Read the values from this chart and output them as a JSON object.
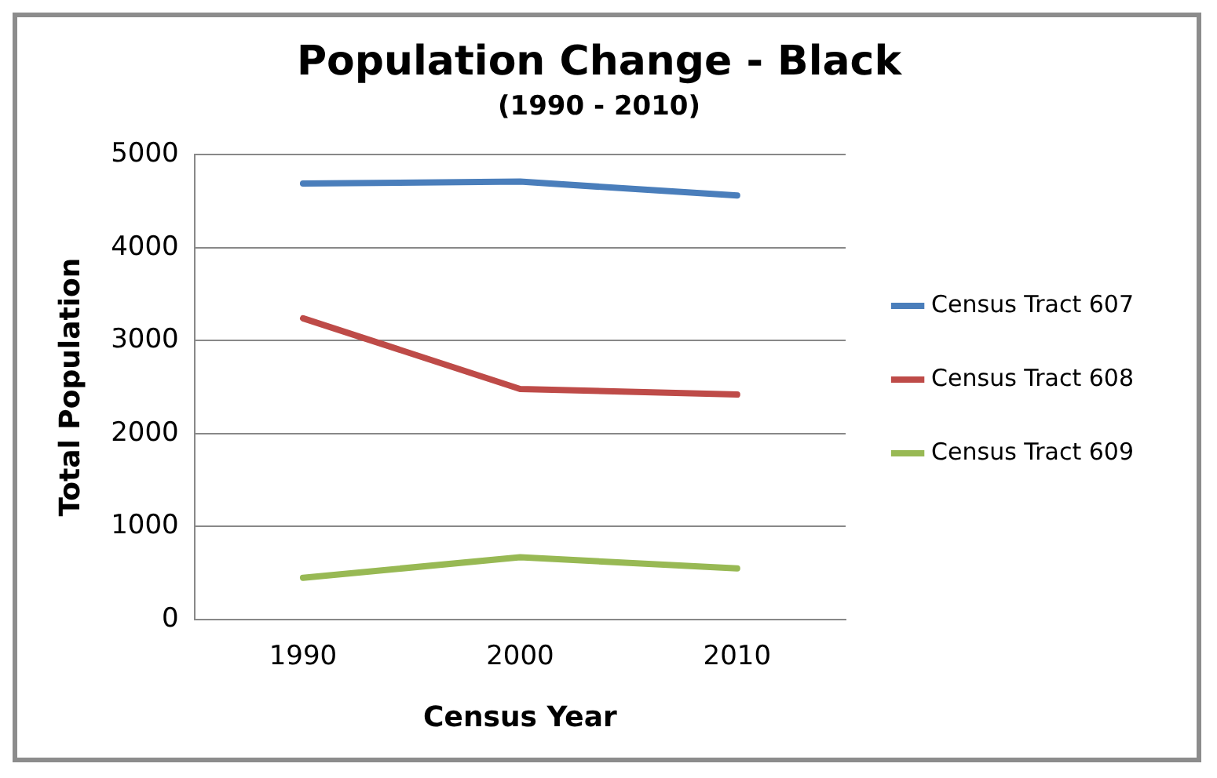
{
  "chart_data": {
    "type": "line",
    "title": "Population Change - Black",
    "subtitle": "(1990 - 2010)",
    "xlabel": "Census Year",
    "ylabel": "Total Population",
    "categories": [
      "1990",
      "2000",
      "2010"
    ],
    "series": [
      {
        "name": "Census Tract 607",
        "color": "#4a7ebb",
        "values": [
          4690,
          4710,
          4560
        ]
      },
      {
        "name": "Census Tract 608",
        "color": "#be4b48",
        "values": [
          3240,
          2480,
          2420
        ]
      },
      {
        "name": "Census Tract 609",
        "color": "#98b954",
        "values": [
          450,
          670,
          550
        ]
      }
    ],
    "ylim": [
      0,
      5000
    ],
    "yticks": [
      0,
      1000,
      2000,
      3000,
      4000,
      5000
    ],
    "grid": "y",
    "legend": "right",
    "marker": "none",
    "line_style": "solid"
  }
}
